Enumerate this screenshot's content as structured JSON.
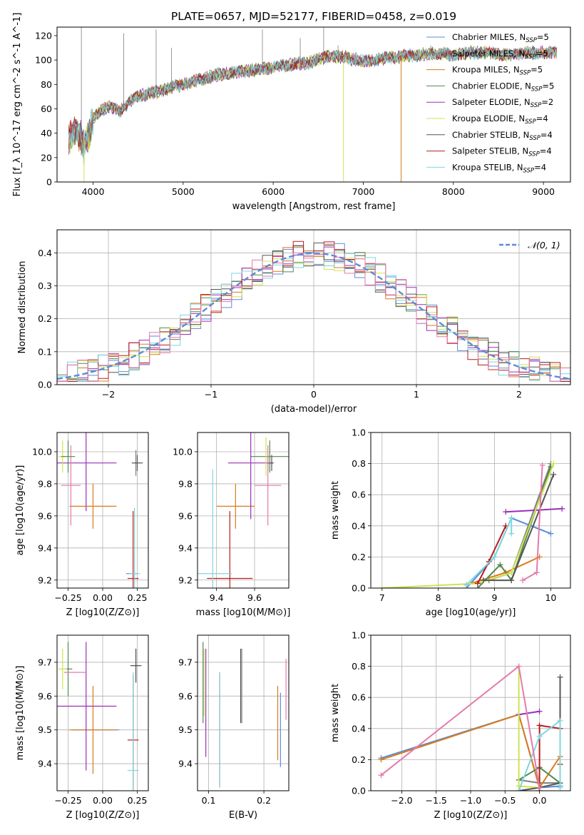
{
  "figure_title": "PLATE=0657, MJD=52177, FIBERID=0458, z=0.019",
  "colors": [
    "#5b8cd9",
    "#7f7f7f",
    "#d97b1c",
    "#4f8a50",
    "#9a2fb8",
    "#cfe34f",
    "#555555",
    "#b51e1e",
    "#7fd6de",
    "#e57aac"
  ],
  "legend_labels": [
    "Chabrier MILES, N_SSP=5",
    "Salpeter MILES, N_SSP=5",
    "Kroupa MILES, N_SSP=5",
    "Chabrier ELODIE, N_SSP=5",
    "Salpeter ELODIE, N_SSP=2",
    "Kroupa ELODIE, N_SSP=4",
    "Chabrier STELIB, N_SSP=4",
    "Salpeter STELIB, N_SSP=4",
    "Kroupa STELIB, N_SSP=4"
  ],
  "chart_data": [
    {
      "id": "spectrum",
      "type": "line",
      "xlabel": "wavelength [Angstrom, rest frame]",
      "ylabel": "Flux [f_λ 10^-17 erg cm^-2 s^-1 A^-1]",
      "xlim": [
        3600,
        9300
      ],
      "ylim": [
        0,
        127
      ],
      "xticks": [
        4000,
        5000,
        6000,
        7000,
        8000,
        9000
      ],
      "yticks": [
        0,
        20,
        40,
        60,
        80,
        100,
        120
      ],
      "legend_position": "top-right",
      "continuum_knots": {
        "x": [
          3730,
          3800,
          3850,
          3900,
          3950,
          4000,
          4100,
          4200,
          4300,
          4400,
          4500,
          4600,
          4700,
          4800,
          4900,
          5000,
          5200,
          5400,
          5600,
          5800,
          6000,
          6200,
          6400,
          6600,
          6800,
          7000,
          7200,
          7400,
          7600,
          7800,
          8000,
          8200,
          8400,
          8600,
          8800,
          9000,
          9150
        ],
        "y": [
          35,
          42,
          38,
          30,
          38,
          52,
          60,
          62,
          58,
          66,
          70,
          72,
          74,
          76,
          78,
          80,
          84,
          88,
          90,
          92,
          94,
          96,
          98,
          103,
          102,
          99,
          101,
          103,
          104,
          106,
          104,
          106,
          106,
          104,
          106,
          106,
          106
        ]
      },
      "drop_lines": [
        {
          "series": 5,
          "x": 6780,
          "from": 100,
          "to": 0
        },
        {
          "series": 2,
          "x": 7420,
          "from": 103,
          "to": 0
        },
        {
          "series": 5,
          "x": 3900,
          "from": 35,
          "to": 0
        }
      ],
      "emission_spikes": [
        {
          "x": 3870,
          "y": 127
        },
        {
          "x": 4340,
          "y": 122
        },
        {
          "x": 4700,
          "y": 125
        },
        {
          "x": 4870,
          "y": 110
        },
        {
          "x": 5880,
          "y": 125
        },
        {
          "x": 6300,
          "y": 118
        },
        {
          "x": 6560,
          "y": 127
        },
        {
          "x": 6720,
          "y": 112
        },
        {
          "x": 7750,
          "y": 112
        },
        {
          "x": 8500,
          "y": 110
        },
        {
          "x": 8670,
          "y": 108
        }
      ]
    },
    {
      "id": "residuals",
      "type": "step",
      "xlabel": "(data-model)/error",
      "ylabel": "Normed distribution",
      "xlim": [
        -2.5,
        2.5
      ],
      "ylim": [
        0,
        0.47
      ],
      "xticks": [
        -2,
        -1,
        0,
        1,
        2
      ],
      "yticks": [
        0.0,
        0.1,
        0.2,
        0.3,
        0.4
      ],
      "bin_width": 0.1,
      "gaussian_label": "𝒩(0, 1)",
      "legend_position": "top-right"
    },
    {
      "id": "age_vs_Z",
      "type": "errorbar",
      "xlabel": "Z [log10(Z/Z⊙)]",
      "ylabel": "age [log10(age/yr)]",
      "xlim": [
        -0.33,
        0.33
      ],
      "ylim": [
        9.15,
        10.12
      ],
      "xticks": [
        -0.25,
        0.0,
        0.25
      ],
      "yticks": [
        9.2,
        9.4,
        9.6,
        9.8,
        10.0
      ],
      "points": [
        {
          "c": 0,
          "x": 0.21,
          "y": 9.24,
          "xe": 0.04,
          "ye": 0.0
        },
        {
          "c": 1,
          "x": 0.24,
          "y": 9.93,
          "xe": 0.01,
          "ye": 0.08
        },
        {
          "c": 2,
          "x": -0.07,
          "y": 9.66,
          "xe": 0.17,
          "ye": 0.14
        },
        {
          "c": 3,
          "x": -0.2,
          "y": 9.66,
          "xe": 0.0,
          "ye": 0.0
        },
        {
          "c": 4,
          "x": -0.12,
          "y": 9.93,
          "xe": 0.22,
          "ye": 0.3
        },
        {
          "c": 5,
          "x": -0.29,
          "y": 9.97,
          "xe": 0.03,
          "ye": 0.1
        },
        {
          "c": 6,
          "x": 0.25,
          "y": 9.93,
          "xe": 0.04,
          "ye": 0.05
        },
        {
          "c": 7,
          "x": 0.22,
          "y": 9.21,
          "xe": 0.04,
          "ye": 0.42
        },
        {
          "c": 8,
          "x": 0.23,
          "y": 9.24,
          "xe": 0.04,
          "ye": 0.41
        },
        {
          "c": 9,
          "x": -0.23,
          "y": 9.79,
          "xe": 0.07,
          "ye": 0.25
        },
        {
          "c": 3,
          "x": -0.25,
          "y": 9.97,
          "xe": 0.05,
          "ye": 0.1
        }
      ]
    },
    {
      "id": "age_vs_mass",
      "type": "errorbar",
      "xlabel": "mass [log10(M/M⊙)]",
      "ylabel": "",
      "xlim": [
        9.3,
        9.78
      ],
      "ylim": [
        9.15,
        10.12
      ],
      "xticks": [
        9.4,
        9.6
      ],
      "yticks": [
        9.2,
        9.4,
        9.6,
        9.8,
        10.0
      ],
      "points": [
        {
          "c": 0,
          "x": 9.58,
          "y": 9.66,
          "xe": 0.0,
          "ye": 0.0
        },
        {
          "c": 1,
          "x": 9.67,
          "y": 9.93,
          "xe": 0.01,
          "ye": 0.05
        },
        {
          "c": 2,
          "x": 9.5,
          "y": 9.66,
          "xe": 0.1,
          "ye": 0.14
        },
        {
          "c": 3,
          "x": 9.68,
          "y": 9.97,
          "xe": 0.1,
          "ye": 0.1
        },
        {
          "c": 4,
          "x": 9.58,
          "y": 9.93,
          "xe": 0.12,
          "ye": 0.35
        },
        {
          "c": 5,
          "x": 9.66,
          "y": 9.97,
          "xe": 0.0,
          "ye": 0.12
        },
        {
          "c": 6,
          "x": 9.69,
          "y": 9.93,
          "xe": 0.01,
          "ye": 0.05
        },
        {
          "c": 7,
          "x": 9.47,
          "y": 9.21,
          "xe": 0.12,
          "ye": 0.42
        },
        {
          "c": 8,
          "x": 9.38,
          "y": 9.24,
          "xe": 0.1,
          "ye": 0.65
        },
        {
          "c": 9,
          "x": 9.67,
          "y": 9.79,
          "xe": 0.07,
          "ye": 0.25
        }
      ]
    },
    {
      "id": "mass_weight_vs_age",
      "type": "line",
      "xlabel": "age [log10(age/yr)]",
      "ylabel": "mass weight",
      "xlim": [
        6.8,
        10.35
      ],
      "ylim": [
        0,
        1.0
      ],
      "xticks": [
        7,
        8,
        9,
        10
      ],
      "yticks": [
        0.0,
        0.2,
        0.4,
        0.6,
        0.8,
        1.0
      ],
      "series": [
        {
          "c": 0,
          "x": [
            8.5,
            9.0,
            9.3,
            10.0
          ],
          "y": [
            0.0,
            0.2,
            0.45,
            0.35
          ]
        },
        {
          "c": 1,
          "x": [
            8.9,
            9.3,
            10.0
          ],
          "y": [
            0.05,
            0.1,
            0.8
          ]
        },
        {
          "c": 2,
          "x": [
            8.5,
            9.2,
            9.8
          ],
          "y": [
            0.02,
            0.1,
            0.2
          ]
        },
        {
          "c": 3,
          "x": [
            8.7,
            9.1,
            9.3,
            10.0
          ],
          "y": [
            0.0,
            0.15,
            0.05,
            0.78
          ]
        },
        {
          "c": 4,
          "x": [
            9.2,
            10.2
          ],
          "y": [
            0.49,
            0.51
          ]
        },
        {
          "c": 5,
          "x": [
            7.0,
            8.7,
            9.3,
            10.05
          ],
          "y": [
            0.0,
            0.03,
            0.1,
            0.8
          ]
        },
        {
          "c": 6,
          "x": [
            8.8,
            9.3,
            10.05
          ],
          "y": [
            0.05,
            0.05,
            0.73
          ]
        },
        {
          "c": 7,
          "x": [
            8.7,
            8.9,
            9.2
          ],
          "y": [
            0.03,
            0.17,
            0.4
          ]
        },
        {
          "c": 8,
          "x": [
            8.5,
            9.0,
            9.3,
            9.3
          ],
          "y": [
            0.02,
            0.2,
            0.45,
            0.35
          ]
        },
        {
          "c": 9,
          "x": [
            9.5,
            9.75,
            9.85
          ],
          "y": [
            0.05,
            0.1,
            0.79
          ]
        }
      ]
    },
    {
      "id": "mass_vs_Z",
      "type": "errorbar",
      "xlabel": "Z [log10(Z/Z⊙)]",
      "ylabel": "mass [log10(M/M⊙)]",
      "xlim": [
        -0.33,
        0.33
      ],
      "ylim": [
        9.32,
        9.78
      ],
      "xticks": [
        -0.25,
        0.0,
        0.25
      ],
      "yticks": [
        9.4,
        9.5,
        9.6,
        9.7
      ],
      "points": [
        {
          "c": 0,
          "x": -0.05,
          "y": 9.5,
          "xe": 0.17,
          "ye": 0.0
        },
        {
          "c": 1,
          "x": 0.24,
          "y": 9.69,
          "xe": 0.03,
          "ye": 0.05
        },
        {
          "c": 2,
          "x": -0.07,
          "y": 9.5,
          "xe": 0.17,
          "ye": 0.13
        },
        {
          "c": 3,
          "x": -0.25,
          "y": 9.68,
          "xe": 0.03,
          "ye": 0.08
        },
        {
          "c": 4,
          "x": -0.12,
          "y": 9.57,
          "xe": 0.22,
          "ye": 0.19
        },
        {
          "c": 5,
          "x": -0.29,
          "y": 9.68,
          "xe": 0.03,
          "ye": 0.06
        },
        {
          "c": 6,
          "x": 0.24,
          "y": 9.69,
          "xe": 0.04,
          "ye": 0.05
        },
        {
          "c": 7,
          "x": 0.22,
          "y": 9.47,
          "xe": 0.04,
          "ye": 0.19
        },
        {
          "c": 8,
          "x": 0.22,
          "y": 9.38,
          "xe": 0.04,
          "ye": 0.29
        },
        {
          "c": 9,
          "x": -0.2,
          "y": 9.67,
          "xe": 0.08,
          "ye": 0.0
        }
      ]
    },
    {
      "id": "mass_vs_EBV",
      "type": "errorbar",
      "xlabel": "E(B-V)",
      "ylabel": "",
      "xlim": [
        0.08,
        0.245
      ],
      "ylim": [
        9.32,
        9.78
      ],
      "xticks": [
        0.1,
        0.2
      ],
      "yticks": [
        9.4,
        9.5,
        9.6,
        9.7
      ],
      "points": [
        {
          "c": 0,
          "x": 0.23,
          "y": 9.5,
          "xe": 0.0,
          "ye": 0.11
        },
        {
          "c": 1,
          "x": 0.16,
          "y": 9.63,
          "xe": 0.0,
          "ye": 0.11
        },
        {
          "c": 2,
          "x": 0.225,
          "y": 9.52,
          "xe": 0.0,
          "ye": 0.11
        },
        {
          "c": 3,
          "x": 0.09,
          "y": 9.64,
          "xe": 0.0,
          "ye": 0.12
        },
        {
          "c": 4,
          "x": 0.095,
          "y": 9.58,
          "xe": 0.0,
          "ye": 0.16
        },
        {
          "c": 5,
          "x": 0.092,
          "y": 9.64,
          "xe": 0.0,
          "ye": 0.1
        },
        {
          "c": 6,
          "x": 0.158,
          "y": 9.63,
          "xe": 0.0,
          "ye": 0.11
        },
        {
          "c": 7,
          "x": 0.12,
          "y": 9.5,
          "xe": 0.0,
          "ye": 0.17
        },
        {
          "c": 8,
          "x": 0.12,
          "y": 9.5,
          "xe": 0.0,
          "ye": 0.17
        },
        {
          "c": 9,
          "x": 0.24,
          "y": 9.62,
          "xe": 0.0,
          "ye": 0.09
        }
      ]
    },
    {
      "id": "mass_weight_vs_Z",
      "type": "line",
      "xlabel": "Z [log10(Z/Z⊙)]",
      "ylabel": "mass weight",
      "xlim": [
        -2.45,
        0.45
      ],
      "ylim": [
        0,
        1.0
      ],
      "xticks": [
        -2.0,
        -1.5,
        -1.0,
        -0.5,
        0.0
      ],
      "yticks": [
        0.0,
        0.2,
        0.4,
        0.6,
        0.8,
        1.0
      ],
      "series": [
        {
          "c": 0,
          "x": [
            -2.3,
            -0.3,
            0.0,
            0.3
          ],
          "y": [
            0.21,
            0.49,
            0.02,
            0.03
          ]
        },
        {
          "c": 1,
          "x": [
            -0.3,
            0.0,
            0.3
          ],
          "y": [
            0.07,
            0.05,
            0.05
          ]
        },
        {
          "c": 2,
          "x": [
            -2.3,
            -0.3,
            0.0,
            0.3
          ],
          "y": [
            0.2,
            0.49,
            0.02,
            0.22
          ]
        },
        {
          "c": 3,
          "x": [
            -0.3,
            0.0,
            0.3
          ],
          "y": [
            0.07,
            0.15,
            0.05
          ]
        },
        {
          "c": 4,
          "x": [
            -0.3,
            0.0
          ],
          "y": [
            0.49,
            0.51
          ]
        },
        {
          "c": 5,
          "x": [
            -0.3,
            -0.3,
            0.0,
            0.3
          ],
          "y": [
            0.8,
            0.03,
            0.02,
            0.05
          ]
        },
        {
          "c": 6,
          "x": [
            -0.3,
            0.0,
            0.3,
            0.3
          ],
          "y": [
            0.0,
            0.02,
            0.05,
            0.73
          ]
        },
        {
          "c": 7,
          "x": [
            0.0,
            0.0,
            0.3,
            0.3
          ],
          "y": [
            0.0,
            0.42,
            0.4,
            0.17
          ]
        },
        {
          "c": 8,
          "x": [
            -0.3,
            0.0,
            0.3,
            0.3
          ],
          "y": [
            0.0,
            0.35,
            0.45,
            0.02
          ]
        },
        {
          "c": 9,
          "x": [
            -2.3,
            -0.3,
            0.0
          ],
          "y": [
            0.1,
            0.8,
            0.02
          ]
        }
      ]
    }
  ]
}
